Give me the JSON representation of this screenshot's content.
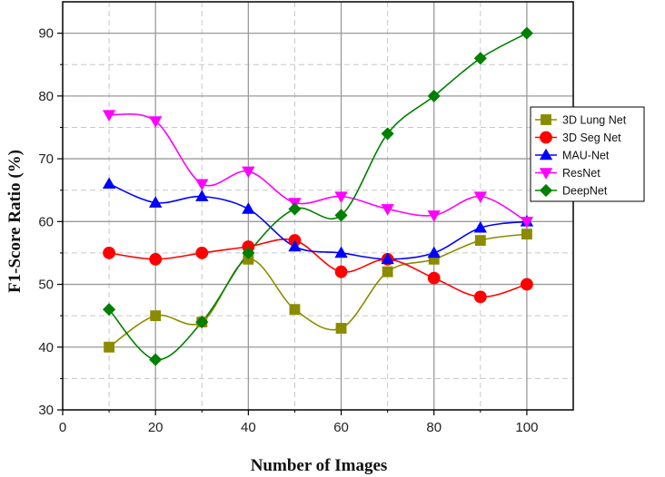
{
  "chart_data": {
    "type": "line",
    "title": "",
    "xlabel": "Number of Images",
    "ylabel": "F1-Score Ratio (%)",
    "xlim": [
      0,
      110
    ],
    "ylim": [
      30,
      95
    ],
    "x_ticks": [
      0,
      20,
      40,
      60,
      80,
      100
    ],
    "y_ticks": [
      30,
      40,
      50,
      60,
      70,
      80,
      90
    ],
    "grid": "major solid, minor dashed",
    "legend_position": "right",
    "x": [
      10,
      20,
      30,
      40,
      50,
      60,
      70,
      80,
      90,
      100
    ],
    "series": [
      {
        "name": "3D Lung Net",
        "color": "#8b8b00",
        "marker": "square",
        "values": [
          40,
          45,
          44,
          54,
          46,
          43,
          52,
          54,
          57,
          58
        ]
      },
      {
        "name": "3D Seg Net",
        "color": "#ff0000",
        "marker": "circle",
        "values": [
          55,
          54,
          55,
          56,
          57,
          52,
          54,
          51,
          48,
          50
        ]
      },
      {
        "name": "MAU-Net",
        "color": "#0000ff",
        "marker": "triangle-up",
        "values": [
          66,
          63,
          64,
          62,
          56,
          55,
          54,
          55,
          59,
          60
        ]
      },
      {
        "name": "ResNet",
        "color": "#ff00ff",
        "marker": "triangle-down",
        "values": [
          77,
          76,
          66,
          68,
          63,
          64,
          62,
          61,
          64,
          60
        ]
      },
      {
        "name": "DeepNet",
        "color": "#008000",
        "marker": "diamond",
        "values": [
          46,
          38,
          44,
          55,
          62,
          61,
          74,
          80,
          86,
          90
        ]
      }
    ]
  }
}
